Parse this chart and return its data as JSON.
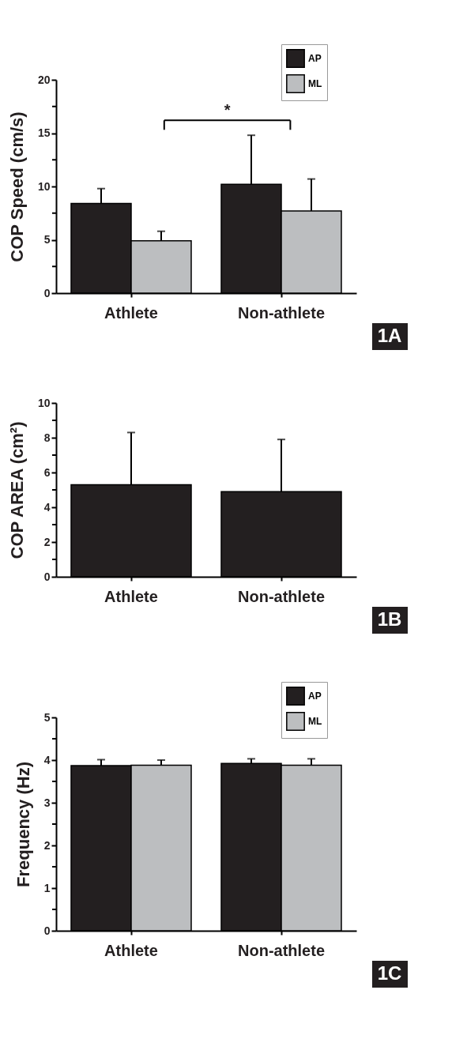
{
  "chart_data": [
    {
      "type": "bar",
      "categories": [
        "Athlete",
        "Non-athlete"
      ],
      "ylabel": "COP Speed (cm/s)",
      "ylim": [
        0,
        20
      ],
      "yticks": [
        0,
        {
          "value": 2.5,
          "label": null
        },
        5,
        {
          "value": 7.5,
          "label": null
        },
        10,
        {
          "value": 12.5,
          "label": null
        },
        15,
        {
          "value": 17.5,
          "label": null
        },
        20
      ],
      "grid": false,
      "legend": "top right",
      "series": [
        {
          "name": "AP",
          "color": "#231f20",
          "values": [
            8.4,
            10.2
          ],
          "errors": [
            [
              8.4,
              9.8
            ],
            [
              10.2,
              14.8
            ]
          ]
        },
        {
          "name": "ML",
          "color": "#bcbec0",
          "values": [
            4.9,
            7.7
          ],
          "errors": [
            [
              4.9,
              5.8
            ],
            [
              7.7,
              10.7
            ]
          ]
        }
      ],
      "annotations": [
        "*",
        "1A"
      ]
    },
    {
      "type": "bar",
      "categories": [
        "Athlete",
        "Non-athlete"
      ],
      "ylabel": "COP AREA (cm²)",
      "ylim": [
        0,
        10
      ],
      "yticks": [
        0,
        {
          "value": 1,
          "label": null
        },
        2,
        {
          "value": 3,
          "label": null
        },
        4,
        {
          "value": 5,
          "label": null
        },
        6,
        {
          "value": 7,
          "label": null
        },
        8,
        {
          "value": 9,
          "label": null
        },
        10
      ],
      "grid": false,
      "series": [
        {
          "color": "#231f20",
          "values": [
            5.3,
            4.9
          ],
          "errors": [
            [
              5.3,
              8.3
            ],
            [
              4.9,
              7.9
            ]
          ]
        }
      ],
      "annotations": [
        "1B"
      ]
    },
    {
      "type": "bar",
      "categories": [
        "Athlete",
        "Non-athlete"
      ],
      "ylabel": "Frequency (Hz)",
      "ylim": [
        0,
        5
      ],
      "yticks": [
        0,
        {
          "value": 0.5,
          "label": null
        },
        1,
        {
          "value": 1.5,
          "label": null
        },
        2,
        {
          "value": 2.5,
          "label": null
        },
        3,
        {
          "value": 3.5,
          "label": null
        },
        4,
        {
          "value": 4.5,
          "label": null
        },
        5
      ],
      "grid": false,
      "legend": "top right",
      "series": [
        {
          "name": "AP",
          "color": "#231f20",
          "values": [
            3.87,
            3.92
          ],
          "errors": [
            [
              3.87,
              4.01
            ],
            [
              3.92,
              4.03
            ]
          ]
        },
        {
          "name": "ML",
          "color": "#bcbec0",
          "values": [
            3.88,
            3.88
          ],
          "errors": [
            [
              3.88,
              4.0
            ],
            [
              3.88,
              4.03
            ]
          ]
        }
      ],
      "annotations": [
        "1C"
      ]
    }
  ]
}
